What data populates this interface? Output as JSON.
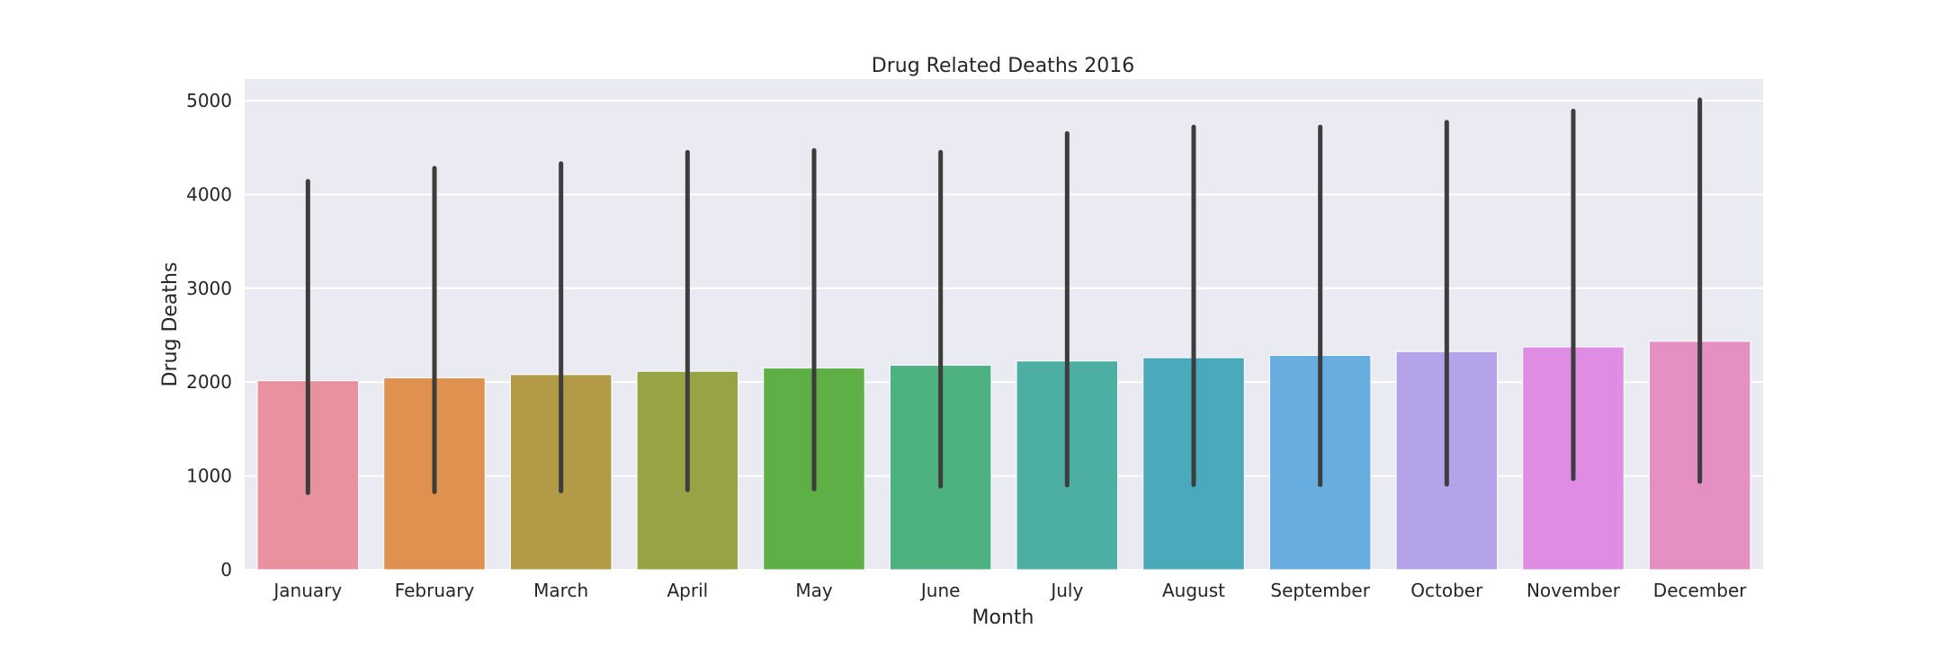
{
  "colors": {
    "plot_background": "#eaeaf2",
    "grid": "#ffffff",
    "error_bar": "#3d3d3d",
    "text": "#262626"
  },
  "chart_data": {
    "type": "bar",
    "title": "Drug Related Deaths 2016",
    "xlabel": "Month",
    "ylabel": "Drug Deaths",
    "categories": [
      "January",
      "February",
      "March",
      "April",
      "May",
      "June",
      "July",
      "August",
      "September",
      "October",
      "November",
      "December"
    ],
    "values": [
      2015,
      2045,
      2080,
      2115,
      2150,
      2180,
      2225,
      2260,
      2285,
      2325,
      2375,
      2435
    ],
    "error_low": [
      820,
      830,
      840,
      850,
      860,
      890,
      900,
      905,
      905,
      910,
      970,
      940
    ],
    "error_high": [
      4140,
      4280,
      4330,
      4450,
      4470,
      4450,
      4650,
      4720,
      4720,
      4770,
      4890,
      5010
    ],
    "bar_colors": [
      "#e8929f",
      "#e0904f",
      "#b39a47",
      "#98a346",
      "#5eb046",
      "#4db27f",
      "#4daea4",
      "#4ba9bc",
      "#68ade0",
      "#b4a3e9",
      "#df8ce5",
      "#e68fc3"
    ],
    "ylim": [
      0,
      5230
    ],
    "yticks": [
      0,
      1000,
      2000,
      3000,
      4000,
      5000
    ],
    "grid": true,
    "legend": "none"
  }
}
